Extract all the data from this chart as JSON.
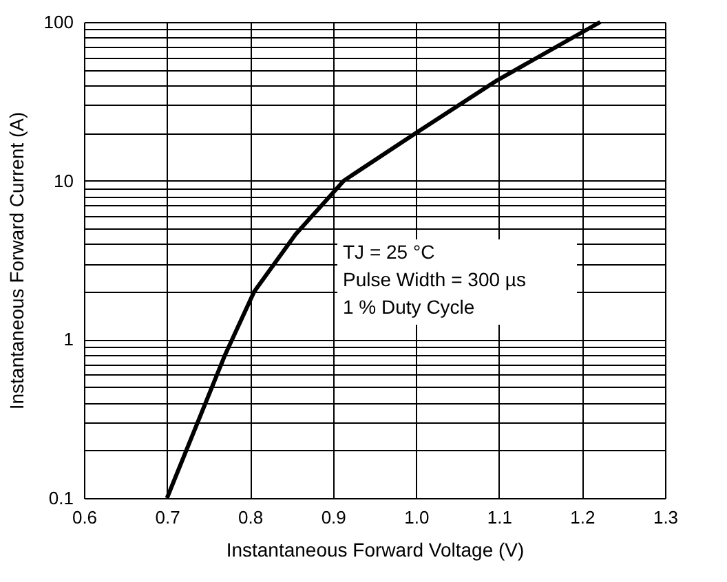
{
  "chart_data": {
    "type": "line",
    "xlabel": "Instantaneous Forward Voltage (V)",
    "ylabel": "Instantaneous Forward Current (A)",
    "x": [
      0.7,
      0.77,
      0.805,
      0.855,
      0.913,
      1.0,
      1.098,
      1.222
    ],
    "series": [
      {
        "color": "#000000",
        "values": [
          0.1,
          0.8,
          2,
          4.6,
          10,
          20,
          43,
          100
        ]
      }
    ],
    "xlim": [
      0.6,
      1.3
    ],
    "xticks": [
      0.6,
      0.7,
      0.8,
      0.9,
      {
        "value": 1.0,
        "label": "1.0"
      },
      1.1,
      1.2,
      1.3
    ],
    "ylim": [
      0.1,
      100
    ],
    "log": "y",
    "yticks": [
      0.1,
      {
        "value": 0.2,
        "label": null
      },
      {
        "value": 0.3,
        "label": null
      },
      {
        "value": 0.4,
        "label": null
      },
      {
        "value": 0.5,
        "label": null
      },
      {
        "value": 0.6,
        "label": null
      },
      {
        "value": 0.7,
        "label": null
      },
      {
        "value": 0.8,
        "label": null
      },
      {
        "value": 0.9,
        "label": null
      },
      1,
      {
        "value": 2,
        "label": null
      },
      {
        "value": 3,
        "label": null
      },
      {
        "value": 4,
        "label": null
      },
      {
        "value": 5,
        "label": null
      },
      {
        "value": 6,
        "label": null
      },
      {
        "value": 7,
        "label": null
      },
      {
        "value": 8,
        "label": null
      },
      {
        "value": 9,
        "label": null
      },
      10,
      {
        "value": 20,
        "label": null
      },
      {
        "value": 30,
        "label": null
      },
      {
        "value": 40,
        "label": null
      },
      {
        "value": 50,
        "label": null
      },
      {
        "value": 60,
        "label": null
      },
      {
        "value": 70,
        "label": null
      },
      {
        "value": 80,
        "label": null
      },
      {
        "value": 90,
        "label": null
      },
      100
    ],
    "grid": true,
    "marker": "none",
    "line_style": "solid",
    "annotations": [
      "TJ = 25 °C",
      "Pulse Width = 300 µs",
      "1 % Duty Cycle"
    ]
  }
}
